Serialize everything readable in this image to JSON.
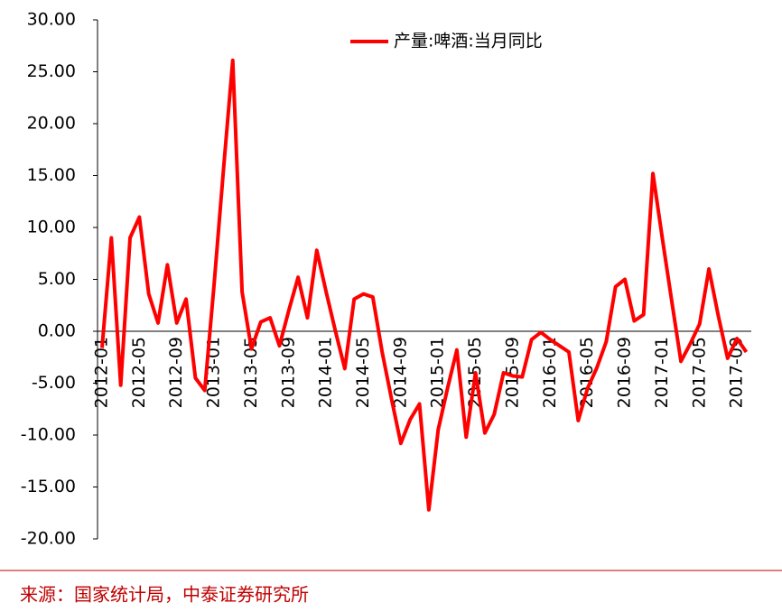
{
  "chart_data": {
    "type": "line",
    "categories": [
      "2012-01",
      null,
      null,
      null,
      "2012-05",
      null,
      null,
      null,
      "2012-09",
      null,
      null,
      null,
      "2013-01",
      null,
      null,
      null,
      "2013-05",
      null,
      null,
      null,
      "2013-09",
      null,
      null,
      null,
      "2014-01",
      null,
      null,
      null,
      "2014-05",
      null,
      null,
      null,
      "2014-09",
      null,
      null,
      null,
      "2015-01",
      null,
      null,
      null,
      "2015-05",
      null,
      null,
      null,
      "2015-09",
      null,
      null,
      null,
      "2016-01",
      null,
      null,
      null,
      "2016-05",
      null,
      null,
      null,
      "2016-09",
      null,
      null,
      null,
      "2017-01",
      null,
      null,
      null,
      "2017-05",
      null,
      null,
      null,
      "2017-09",
      null
    ],
    "series": [
      {
        "name": "产量:啤酒:当月同比",
        "color": "#ff0000",
        "values": [
          -1.6,
          9.0,
          -5.2,
          9.0,
          11.0,
          3.6,
          0.8,
          6.4,
          0.8,
          3.1,
          -4.5,
          -5.7,
          4.5,
          15.5,
          26.1,
          3.8,
          -1.7,
          0.9,
          1.3,
          -1.4,
          2.0,
          5.2,
          1.3,
          7.8,
          3.8,
          0.0,
          -3.6,
          3.1,
          3.6,
          3.3,
          -2.0,
          -6.5,
          -10.8,
          -8.5,
          -7.0,
          -17.2,
          -9.5,
          -5.5,
          -1.8,
          -10.2,
          -4.0,
          -9.8,
          -8.0,
          -4.0,
          -4.3,
          -4.4,
          -0.8,
          -0.1,
          -0.8,
          -1.4,
          -2.0,
          -8.6,
          -5.5,
          -3.5,
          -1.0,
          4.3,
          5.0,
          1.0,
          1.6,
          15.2,
          9.0,
          3.0,
          -2.9,
          -1.2,
          0.7,
          6.0,
          1.5,
          -2.6,
          -0.7,
          -2.0
        ]
      }
    ],
    "ylim": [
      -20,
      30
    ],
    "yticks": [
      {
        "value": -20,
        "label": "-20.00"
      },
      {
        "value": -15,
        "label": "-15.00"
      },
      {
        "value": -10,
        "label": "-10.00"
      },
      {
        "value": -5,
        "label": "-5.00"
      },
      {
        "value": 0,
        "label": "0.00"
      },
      {
        "value": 5,
        "label": "5.00"
      },
      {
        "value": 10,
        "label": "10.00"
      },
      {
        "value": 15,
        "label": "15.00"
      },
      {
        "value": 20,
        "label": "20.00"
      },
      {
        "value": 25,
        "label": "25.00"
      },
      {
        "value": 30,
        "label": "30.00"
      }
    ],
    "grid": false,
    "legend": "top"
  },
  "source": "来源：国家统计局，中泰证券研究所"
}
